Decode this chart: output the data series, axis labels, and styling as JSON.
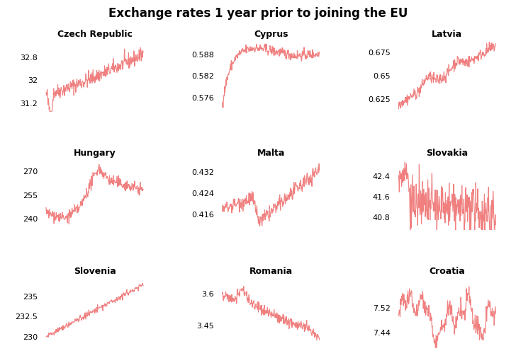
{
  "title": "Exchange rates 1 year prior to joining the EU",
  "line_color": "#f08080",
  "background_color": "#ffffff",
  "title_fontsize": 12,
  "label_fontsize": 9,
  "tick_fontsize": 8,
  "countries": [
    {
      "name": "Czech Republic",
      "yticks": [
        31.2,
        32.0,
        32.8
      ],
      "ylim": [
        30.9,
        33.4
      ]
    },
    {
      "name": "Cyprus",
      "yticks": [
        0.576,
        0.582,
        0.588
      ],
      "ylim": [
        0.572,
        0.592
      ]
    },
    {
      "name": "Latvia",
      "yticks": [
        0.625,
        0.65,
        0.675
      ],
      "ylim": [
        0.612,
        0.688
      ]
    },
    {
      "name": "Hungary",
      "yticks": [
        240,
        255,
        270
      ],
      "ylim": [
        233,
        278
      ]
    },
    {
      "name": "Malta",
      "yticks": [
        0.416,
        0.424,
        0.432
      ],
      "ylim": [
        0.41,
        0.437
      ]
    },
    {
      "name": "Slovakia",
      "yticks": [
        40.8,
        41.6,
        42.4
      ],
      "ylim": [
        40.3,
        43.1
      ]
    },
    {
      "name": "Slovenia",
      "yticks": [
        230.0,
        232.5,
        235.0
      ],
      "ylim": [
        228.5,
        237.5
      ]
    },
    {
      "name": "Romania",
      "yticks": [
        3.45,
        3.6
      ],
      "ylim": [
        3.34,
        3.68
      ]
    },
    {
      "name": "Croatia",
      "yticks": [
        7.44,
        7.52
      ],
      "ylim": [
        7.39,
        7.62
      ]
    }
  ]
}
